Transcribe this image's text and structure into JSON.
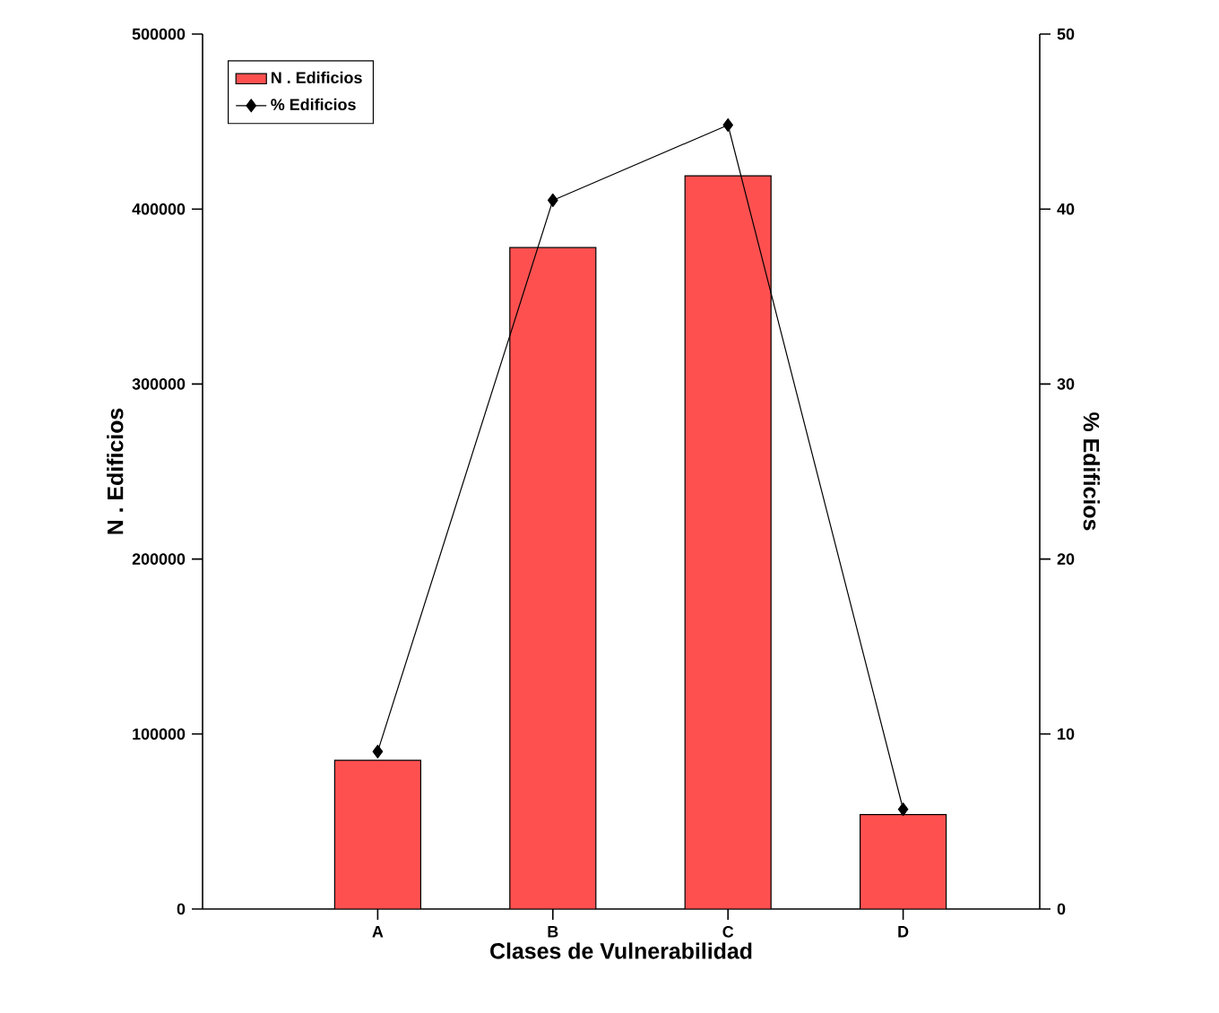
{
  "chart_data": {
    "type": "bar",
    "xlabel": "Clases de Vulnerabilidad",
    "ylabel": "N . Edificios",
    "y2label": "% Edificios",
    "categories": [
      "A",
      "B",
      "C",
      "D"
    ],
    "series": [
      {
        "name": "N . Edificios",
        "color": "#ff5050",
        "values": [
          85000,
          378000,
          419000,
          54000
        ]
      },
      {
        "name": "% Edificios",
        "type": "line",
        "axis": "y2",
        "color": "#000000",
        "values": [
          9,
          40.5,
          44.8,
          5.7
        ]
      }
    ],
    "ylim": [
      0,
      500000
    ],
    "yticks": [
      0,
      100000,
      200000,
      300000,
      400000,
      500000
    ],
    "y2lim": [
      0,
      50
    ],
    "y2ticks": [
      0,
      10,
      20,
      30,
      40,
      50
    ],
    "legend": "top left",
    "marker": "diamond",
    "line_style": "solid"
  }
}
